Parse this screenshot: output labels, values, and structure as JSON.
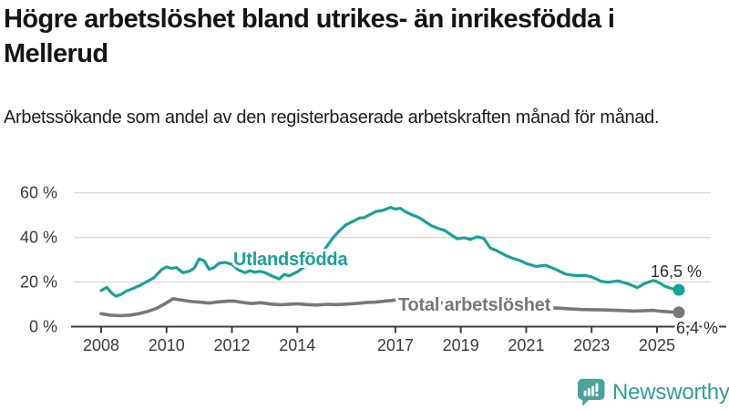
{
  "header": {
    "title": "Högre arbetslöshet bland utrikes- än inrikesfödda i Mellerud",
    "subtitle": "Arbetssökande som andel av den registerbaserade arbetskraften månad för månad."
  },
  "branding": {
    "logo_text": "Newsworthy",
    "logo_icon": "speech-bubble-with-bar-chart-and-exclamation",
    "logo_text_color": "#2f9e96",
    "logo_icon_color": "#48a39b"
  },
  "colors": {
    "accent_teal": "#17a298",
    "series_gray": "#77777b",
    "gridline": "#d9d9d9",
    "axis_line": "#3f3f3f",
    "axis_text": "#3a3a3a",
    "end_label_text": "#2e2e2e"
  },
  "chart_data": {
    "type": "line",
    "title": "Högre arbetslöshet bland utrikes- än inrikesfödda i Mellerud",
    "subtitle": "Arbetssökande som andel av den registerbaserade arbetskraften månad för månad.",
    "unit": "%",
    "grid": "horizontal-only",
    "legend_position": "inline-labels-on-lines",
    "x_axis": {
      "range_years": [
        2007.1,
        2027.1
      ],
      "ticks": [
        {
          "year": 2008,
          "label": "2008"
        },
        {
          "year": 2010,
          "label": "2010"
        },
        {
          "year": 2012,
          "label": "2012"
        },
        {
          "year": 2014,
          "label": "2014"
        },
        {
          "year": 2017,
          "label": "2017"
        },
        {
          "year": 2019,
          "label": "2019"
        },
        {
          "year": 2021,
          "label": "2021"
        },
        {
          "year": 2023,
          "label": "2023"
        },
        {
          "year": 2025,
          "label": "2025"
        }
      ]
    },
    "y_axis": {
      "range": [
        0,
        62
      ],
      "ticks": [
        {
          "value": 0,
          "label": "0 %"
        },
        {
          "value": 20,
          "label": "20 %"
        },
        {
          "value": 40,
          "label": "40 %"
        },
        {
          "value": 60,
          "label": "60 %"
        }
      ]
    },
    "series": [
      {
        "name": "Utlandsfödda",
        "color": "#17a298",
        "end_value": 16.5,
        "end_label": "16,5 %",
        "points": [
          [
            2008.0,
            16.2
          ],
          [
            2008.17,
            17.6
          ],
          [
            2008.33,
            15.0
          ],
          [
            2008.45,
            13.7
          ],
          [
            2008.6,
            14.4
          ],
          [
            2008.75,
            15.8
          ],
          [
            2009.0,
            17.3
          ],
          [
            2009.2,
            18.6
          ],
          [
            2009.4,
            20.2
          ],
          [
            2009.6,
            21.8
          ],
          [
            2009.85,
            25.6
          ],
          [
            2010.0,
            26.8
          ],
          [
            2010.15,
            26.1
          ],
          [
            2010.3,
            26.5
          ],
          [
            2010.5,
            24.2
          ],
          [
            2010.7,
            24.9
          ],
          [
            2010.85,
            26.3
          ],
          [
            2011.0,
            30.4
          ],
          [
            2011.15,
            29.5
          ],
          [
            2011.3,
            25.7
          ],
          [
            2011.45,
            26.5
          ],
          [
            2011.6,
            28.4
          ],
          [
            2011.8,
            28.8
          ],
          [
            2012.0,
            27.9
          ],
          [
            2012.2,
            25.4
          ],
          [
            2012.4,
            24.2
          ],
          [
            2012.55,
            25.1
          ],
          [
            2012.7,
            24.4
          ],
          [
            2012.85,
            24.8
          ],
          [
            2013.0,
            24.3
          ],
          [
            2013.2,
            22.9
          ],
          [
            2013.45,
            21.4
          ],
          [
            2013.6,
            23.4
          ],
          [
            2013.75,
            22.8
          ],
          [
            2014.0,
            24.6
          ],
          [
            2014.25,
            27.2
          ],
          [
            2014.5,
            30.2
          ],
          [
            2014.7,
            32.8
          ],
          [
            2014.85,
            35.0
          ],
          [
            2015.1,
            40.0
          ],
          [
            2015.3,
            43.2
          ],
          [
            2015.5,
            45.8
          ],
          [
            2015.7,
            47.2
          ],
          [
            2015.9,
            48.7
          ],
          [
            2016.05,
            48.9
          ],
          [
            2016.2,
            50.1
          ],
          [
            2016.4,
            51.6
          ],
          [
            2016.6,
            52.1
          ],
          [
            2016.85,
            53.5
          ],
          [
            2017.0,
            52.7
          ],
          [
            2017.15,
            53.1
          ],
          [
            2017.3,
            51.6
          ],
          [
            2017.5,
            50.2
          ],
          [
            2017.7,
            49.1
          ],
          [
            2017.9,
            47.2
          ],
          [
            2018.1,
            45.3
          ],
          [
            2018.3,
            44.1
          ],
          [
            2018.5,
            43.2
          ],
          [
            2018.7,
            41.2
          ],
          [
            2018.9,
            39.4
          ],
          [
            2019.1,
            39.9
          ],
          [
            2019.3,
            39.1
          ],
          [
            2019.5,
            40.3
          ],
          [
            2019.7,
            39.6
          ],
          [
            2019.9,
            35.3
          ],
          [
            2020.1,
            34.1
          ],
          [
            2020.4,
            31.7
          ],
          [
            2020.6,
            30.6
          ],
          [
            2020.8,
            29.7
          ],
          [
            2021.0,
            28.3
          ],
          [
            2021.3,
            27.0
          ],
          [
            2021.6,
            27.5
          ],
          [
            2021.9,
            25.7
          ],
          [
            2022.2,
            23.6
          ],
          [
            2022.4,
            23.1
          ],
          [
            2022.6,
            22.9
          ],
          [
            2022.8,
            23.0
          ],
          [
            2023.0,
            22.3
          ],
          [
            2023.3,
            20.3
          ],
          [
            2023.5,
            19.9
          ],
          [
            2023.8,
            20.5
          ],
          [
            2024.1,
            19.3
          ],
          [
            2024.4,
            17.5
          ],
          [
            2024.6,
            19.2
          ],
          [
            2024.9,
            20.8
          ],
          [
            2025.1,
            19.4
          ],
          [
            2025.25,
            18.1
          ],
          [
            2025.45,
            17.1
          ],
          [
            2025.67,
            16.5
          ]
        ]
      },
      {
        "name": "Total arbetslöshet",
        "color": "#77777b",
        "end_value": 6.4,
        "end_label": "6,4 %",
        "points": [
          [
            2008.0,
            5.8
          ],
          [
            2008.3,
            5.1
          ],
          [
            2008.6,
            4.9
          ],
          [
            2008.9,
            5.2
          ],
          [
            2009.1,
            5.7
          ],
          [
            2009.4,
            6.7
          ],
          [
            2009.7,
            8.2
          ],
          [
            2010.0,
            10.7
          ],
          [
            2010.2,
            12.5
          ],
          [
            2010.5,
            11.8
          ],
          [
            2010.8,
            11.2
          ],
          [
            2011.0,
            11.0
          ],
          [
            2011.3,
            10.6
          ],
          [
            2011.6,
            11.1
          ],
          [
            2011.9,
            11.5
          ],
          [
            2012.1,
            11.4
          ],
          [
            2012.3,
            10.9
          ],
          [
            2012.6,
            10.4
          ],
          [
            2012.9,
            10.7
          ],
          [
            2013.2,
            10.1
          ],
          [
            2013.5,
            9.8
          ],
          [
            2013.8,
            10.1
          ],
          [
            2014.0,
            10.2
          ],
          [
            2014.3,
            9.9
          ],
          [
            2014.6,
            9.7
          ],
          [
            2014.9,
            10.0
          ],
          [
            2015.2,
            9.9
          ],
          [
            2015.5,
            10.1
          ],
          [
            2015.8,
            10.4
          ],
          [
            2016.1,
            10.8
          ],
          [
            2016.4,
            11.0
          ],
          [
            2016.7,
            11.5
          ],
          [
            2017.0,
            11.9
          ],
          [
            2017.5,
            11.5
          ],
          [
            2018.0,
            11.0
          ],
          [
            2018.5,
            10.5
          ],
          [
            2019.0,
            10.0
          ],
          [
            2019.5,
            9.6
          ],
          [
            2020.0,
            9.8
          ],
          [
            2020.5,
            9.4
          ],
          [
            2021.0,
            9.0
          ],
          [
            2021.5,
            8.6
          ],
          [
            2022.0,
            8.3
          ],
          [
            2022.3,
            8.0
          ],
          [
            2022.7,
            7.7
          ],
          [
            2023.0,
            7.6
          ],
          [
            2023.3,
            7.5
          ],
          [
            2023.6,
            7.4
          ],
          [
            2024.0,
            7.2
          ],
          [
            2024.3,
            7.0
          ],
          [
            2024.6,
            7.1
          ],
          [
            2024.9,
            7.3
          ],
          [
            2025.1,
            6.9
          ],
          [
            2025.3,
            6.7
          ],
          [
            2025.5,
            6.5
          ],
          [
            2025.67,
            6.4
          ]
        ]
      }
    ]
  }
}
